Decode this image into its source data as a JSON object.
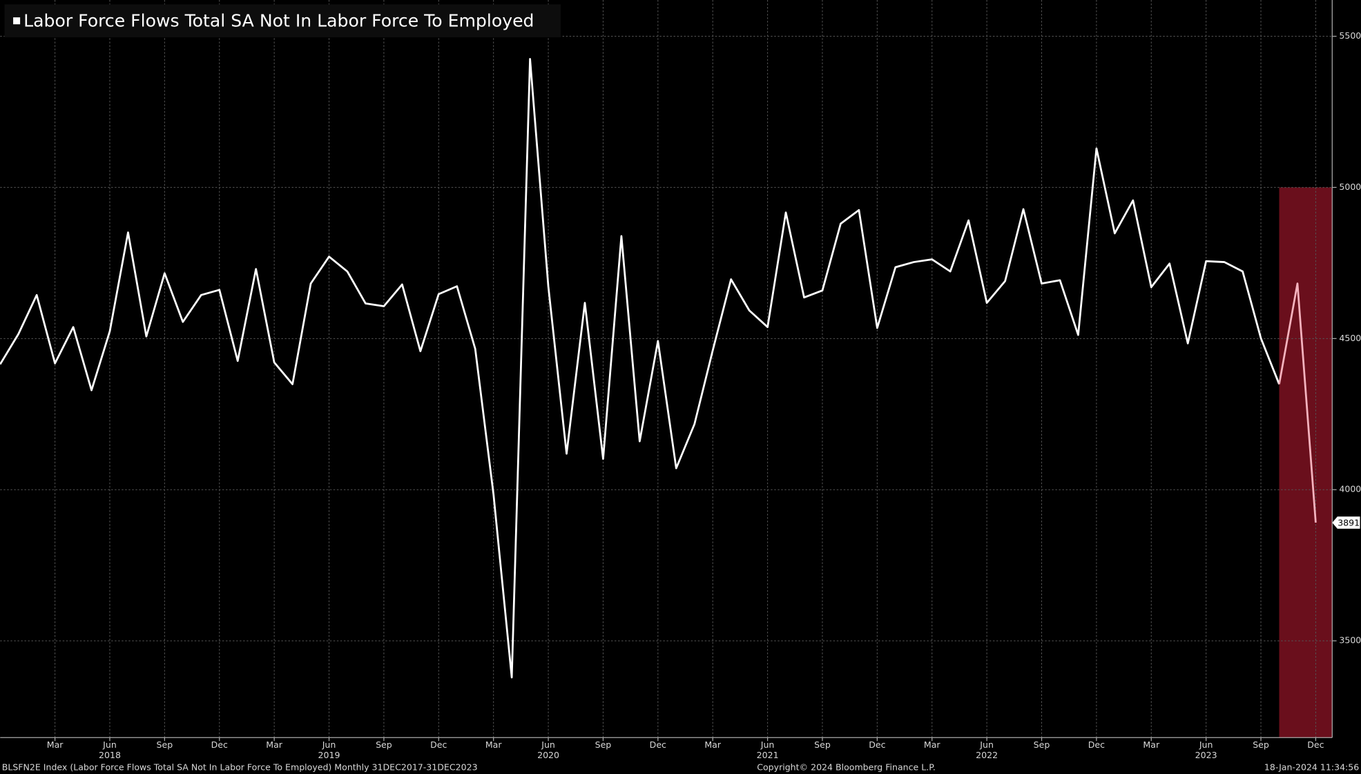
{
  "chart_data": {
    "type": "line",
    "title": "Labor Force Flows Total SA Not In Labor Force To Employed",
    "x": [
      "2017-12",
      "2018-01",
      "2018-02",
      "2018-03",
      "2018-04",
      "2018-05",
      "2018-06",
      "2018-07",
      "2018-08",
      "2018-09",
      "2018-10",
      "2018-11",
      "2018-12",
      "2019-01",
      "2019-02",
      "2019-03",
      "2019-04",
      "2019-05",
      "2019-06",
      "2019-07",
      "2019-08",
      "2019-09",
      "2019-10",
      "2019-11",
      "2019-12",
      "2020-01",
      "2020-02",
      "2020-03",
      "2020-04",
      "2020-05",
      "2020-06",
      "2020-07",
      "2020-08",
      "2020-09",
      "2020-10",
      "2020-11",
      "2020-12",
      "2021-01",
      "2021-02",
      "2021-03",
      "2021-04",
      "2021-05",
      "2021-06",
      "2021-07",
      "2021-08",
      "2021-09",
      "2021-10",
      "2021-11",
      "2021-12",
      "2022-01",
      "2022-02",
      "2022-03",
      "2022-04",
      "2022-05",
      "2022-06",
      "2022-07",
      "2022-08",
      "2022-09",
      "2022-10",
      "2022-11",
      "2022-12",
      "2023-01",
      "2023-02",
      "2023-03",
      "2023-04",
      "2023-05",
      "2023-06",
      "2023-07",
      "2023-08",
      "2023-09",
      "2023-10",
      "2023-11",
      "2023-12"
    ],
    "series": [
      {
        "name": "Labor Force Flows Total SA Not In Labor Force To Employed",
        "color": "#ffffff",
        "highlight_color": "#f4b3be",
        "values": [
          4415,
          4515,
          4644,
          4418,
          4538,
          4329,
          4524,
          4851,
          4507,
          4716,
          4555,
          4644,
          4661,
          4426,
          4730,
          4421,
          4349,
          4682,
          4771,
          4722,
          4616,
          4607,
          4679,
          4458,
          4647,
          4673,
          4466,
          3985,
          3379,
          5425,
          4673,
          4119,
          4618,
          4102,
          4839,
          4160,
          4492,
          4071,
          4217,
          4461,
          4696,
          4593,
          4538,
          4917,
          4636,
          4659,
          4880,
          4925,
          4535,
          4736,
          4753,
          4762,
          4722,
          4891,
          4618,
          4690,
          4928,
          4682,
          4693,
          4512,
          5129,
          4848,
          4957,
          4670,
          4748,
          4484,
          4756,
          4753,
          4722,
          4501,
          4349,
          4682,
          3891
        ]
      }
    ],
    "highlight": {
      "from": "2023-10",
      "top": 5000,
      "color": "#6a0f1c"
    },
    "ylim": [
      3180,
      5620
    ],
    "yticks": [
      3500,
      4000,
      4500,
      5000,
      5500
    ],
    "xticks": [
      {
        "value": "2018-03",
        "label": "Mar"
      },
      {
        "value": "2018-06",
        "label": "Jun"
      },
      {
        "value": "2018-09",
        "label": "Sep"
      },
      {
        "value": "2018-12",
        "label": "Dec"
      },
      {
        "value": "2019-03",
        "label": "Mar"
      },
      {
        "value": "2019-06",
        "label": "Jun"
      },
      {
        "value": "2019-09",
        "label": "Sep"
      },
      {
        "value": "2019-12",
        "label": "Dec"
      },
      {
        "value": "2020-03",
        "label": "Mar"
      },
      {
        "value": "2020-06",
        "label": "Jun"
      },
      {
        "value": "2020-09",
        "label": "Sep"
      },
      {
        "value": "2020-12",
        "label": "Dec"
      },
      {
        "value": "2021-03",
        "label": "Mar"
      },
      {
        "value": "2021-06",
        "label": "Jun"
      },
      {
        "value": "2021-09",
        "label": "Sep"
      },
      {
        "value": "2021-12",
        "label": "Dec"
      },
      {
        "value": "2022-03",
        "label": "Mar"
      },
      {
        "value": "2022-06",
        "label": "Jun"
      },
      {
        "value": "2022-09",
        "label": "Sep"
      },
      {
        "value": "2022-12",
        "label": "Dec"
      },
      {
        "value": "2023-03",
        "label": "Mar"
      },
      {
        "value": "2023-06",
        "label": "Jun"
      },
      {
        "value": "2023-09",
        "label": "Sep"
      },
      {
        "value": "2023-12",
        "label": "Dec"
      }
    ],
    "year_ticks": [
      {
        "value": "2018-06",
        "label": "2018"
      },
      {
        "value": "2019-06",
        "label": "2019"
      },
      {
        "value": "2020-06",
        "label": "2020"
      },
      {
        "value": "2021-06",
        "label": "2021"
      },
      {
        "value": "2022-06",
        "label": "2022"
      },
      {
        "value": "2023-06",
        "label": "2023"
      }
    ],
    "grid": true,
    "footer": {
      "left": "BLSFN2E Index (Labor Force Flows Total SA Not In Labor Force To Employed)  Monthly 31DEC2017-31DEC2023",
      "center": "Copyright© 2024 Bloomberg Finance L.P.",
      "right": "18-Jan-2024 11:34:56"
    }
  }
}
